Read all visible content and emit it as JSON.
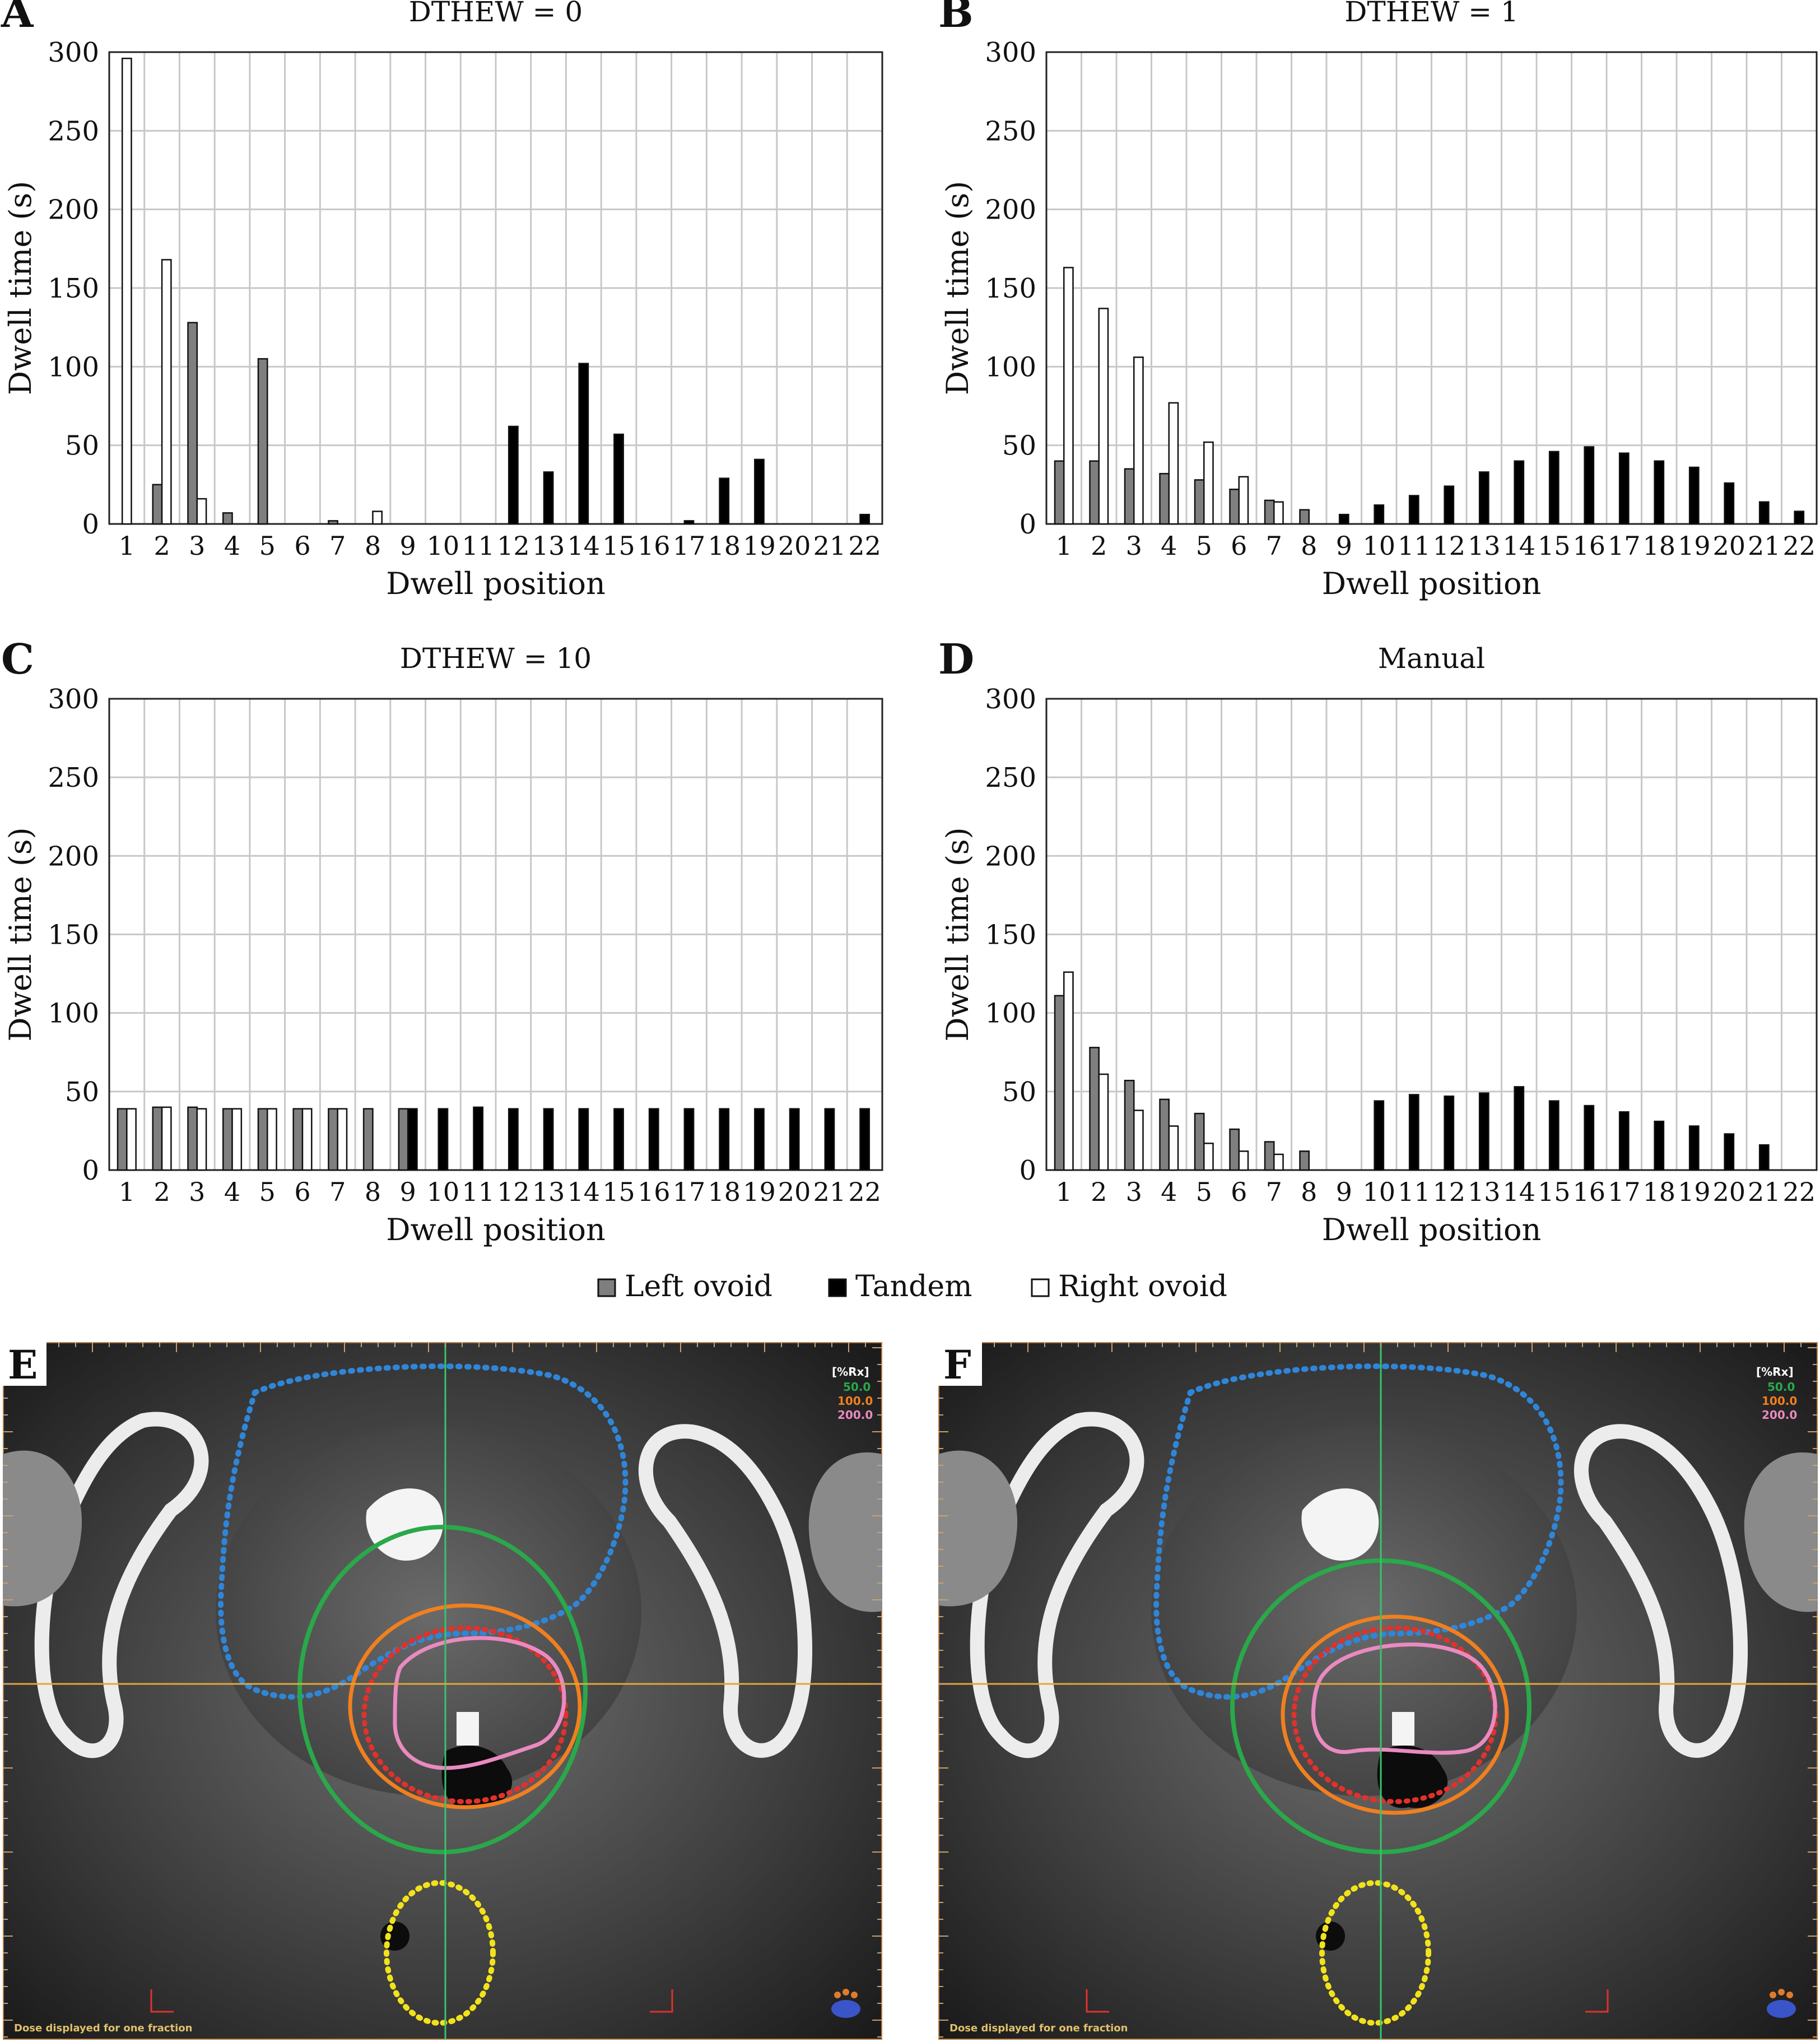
{
  "colors": {
    "left_ovoid": "#7f7f7f",
    "tandem": "#000000",
    "right_ovoid": "#ffffff",
    "iso_50": "#2aa84a",
    "iso_100": "#f07f1f",
    "iso_200": "#e98ac0",
    "ptv_red": "#e0322b",
    "bladder_blue": "#2f86d9",
    "rectum_yellow": "#f2e21b",
    "crosshair_green": "#39c46a",
    "crosshair_orange": "#e0a73a"
  },
  "chart_data": [
    {
      "panel_letter": "A",
      "type": "bar",
      "title": "DTHEW = 0",
      "xlabel": "Dwell position",
      "ylabel": "Dwell time (s)",
      "ylim": [
        0,
        300
      ],
      "yticks": [
        0,
        50,
        100,
        150,
        200,
        250,
        300
      ],
      "categories": [
        "1",
        "2",
        "3",
        "4",
        "5",
        "6",
        "7",
        "8",
        "9",
        "10",
        "11",
        "12",
        "13",
        "14",
        "15",
        "16",
        "17",
        "18",
        "19",
        "20",
        "21",
        "22"
      ],
      "grid": true,
      "series": [
        {
          "name": "Left ovoid",
          "values": [
            null,
            25,
            128,
            7,
            105,
            0,
            2,
            0,
            null,
            null,
            null,
            null,
            null,
            null,
            null,
            null,
            null,
            null,
            null,
            null,
            null,
            null
          ]
        },
        {
          "name": "Tandem",
          "values": [
            null,
            null,
            null,
            null,
            null,
            null,
            null,
            null,
            0,
            0,
            0,
            62,
            33,
            102,
            57,
            0,
            2,
            29,
            41,
            0,
            0,
            6
          ]
        },
        {
          "name": "Right ovoid",
          "values": [
            296,
            168,
            16,
            0,
            0,
            0,
            0,
            8,
            null,
            null,
            null,
            null,
            null,
            null,
            null,
            null,
            null,
            null,
            null,
            null,
            null,
            null
          ]
        }
      ]
    },
    {
      "panel_letter": "B",
      "type": "bar",
      "title": "DTHEW = 1",
      "xlabel": "Dwell position",
      "ylabel": "Dwell time (s)",
      "ylim": [
        0,
        300
      ],
      "yticks": [
        0,
        50,
        100,
        150,
        200,
        250,
        300
      ],
      "categories": [
        "1",
        "2",
        "3",
        "4",
        "5",
        "6",
        "7",
        "8",
        "9",
        "10",
        "11",
        "12",
        "13",
        "14",
        "15",
        "16",
        "17",
        "18",
        "19",
        "20",
        "21",
        "22"
      ],
      "grid": true,
      "series": [
        {
          "name": "Left ovoid",
          "values": [
            40,
            40,
            35,
            32,
            28,
            22,
            15,
            9,
            null,
            null,
            null,
            null,
            null,
            null,
            null,
            null,
            null,
            null,
            null,
            null,
            null,
            null
          ]
        },
        {
          "name": "Tandem",
          "values": [
            null,
            null,
            null,
            null,
            null,
            null,
            null,
            null,
            6,
            12,
            18,
            24,
            33,
            40,
            46,
            49,
            45,
            40,
            36,
            26,
            14,
            8
          ]
        },
        {
          "name": "Right ovoid",
          "values": [
            163,
            137,
            106,
            77,
            52,
            30,
            14,
            0,
            null,
            null,
            null,
            null,
            null,
            null,
            null,
            null,
            null,
            null,
            null,
            null,
            null,
            null
          ]
        }
      ]
    },
    {
      "panel_letter": "C",
      "type": "bar",
      "title": "DTHEW = 10",
      "xlabel": "Dwell position",
      "ylabel": "Dwell time (s)",
      "ylim": [
        0,
        300
      ],
      "yticks": [
        0,
        50,
        100,
        150,
        200,
        250,
        300
      ],
      "categories": [
        "1",
        "2",
        "3",
        "4",
        "5",
        "6",
        "7",
        "8",
        "9",
        "10",
        "11",
        "12",
        "13",
        "14",
        "15",
        "16",
        "17",
        "18",
        "19",
        "20",
        "21",
        "22"
      ],
      "grid": true,
      "series": [
        {
          "name": "Left ovoid",
          "values": [
            39,
            40,
            40,
            39,
            39,
            39,
            39,
            39,
            39,
            null,
            null,
            null,
            null,
            null,
            null,
            null,
            null,
            null,
            null,
            null,
            null,
            null
          ]
        },
        {
          "name": "Tandem",
          "values": [
            null,
            null,
            null,
            null,
            null,
            null,
            null,
            null,
            39,
            39,
            40,
            39,
            39,
            39,
            39,
            39,
            39,
            39,
            39,
            39,
            39,
            39
          ]
        },
        {
          "name": "Right ovoid",
          "values": [
            39,
            40,
            39,
            39,
            39,
            39,
            39,
            0,
            null,
            null,
            null,
            null,
            null,
            null,
            null,
            null,
            null,
            null,
            null,
            null,
            null,
            null
          ]
        }
      ]
    },
    {
      "panel_letter": "D",
      "type": "bar",
      "title": "Manual",
      "xlabel": "Dwell position",
      "ylabel": "Dwell time (s)",
      "ylim": [
        0,
        300
      ],
      "yticks": [
        0,
        50,
        100,
        150,
        200,
        250,
        300
      ],
      "categories": [
        "1",
        "2",
        "3",
        "4",
        "5",
        "6",
        "7",
        "8",
        "9",
        "10",
        "11",
        "12",
        "13",
        "14",
        "15",
        "16",
        "17",
        "18",
        "19",
        "20",
        "21",
        "22"
      ],
      "grid": true,
      "series": [
        {
          "name": "Left ovoid",
          "values": [
            111,
            78,
            57,
            45,
            36,
            26,
            18,
            12,
            null,
            null,
            null,
            null,
            null,
            null,
            null,
            null,
            null,
            null,
            null,
            null,
            null,
            null
          ]
        },
        {
          "name": "Tandem",
          "values": [
            null,
            null,
            null,
            null,
            null,
            null,
            null,
            null,
            0,
            44,
            48,
            47,
            49,
            53,
            44,
            41,
            37,
            31,
            28,
            23,
            16,
            0
          ]
        },
        {
          "name": "Right ovoid",
          "values": [
            126,
            61,
            38,
            28,
            17,
            12,
            10,
            0,
            null,
            null,
            null,
            null,
            null,
            null,
            null,
            null,
            null,
            null,
            null,
            null,
            null,
            null
          ]
        }
      ]
    }
  ],
  "legend": {
    "placement": "bottom-center",
    "items": [
      "Left ovoid",
      "Tandem",
      "Right ovoid"
    ]
  },
  "ct_panels": [
    {
      "letter": "E",
      "iso_legend": {
        "header": "[%Rx]",
        "levels": [
          "50.0",
          "100.0",
          "200.0"
        ]
      },
      "footer": "Dose displayed for one fraction"
    },
    {
      "letter": "F",
      "iso_legend": {
        "header": "[%Rx]",
        "levels": [
          "50.0",
          "100.0",
          "200.0"
        ]
      },
      "footer": "Dose displayed for one fraction"
    }
  ]
}
